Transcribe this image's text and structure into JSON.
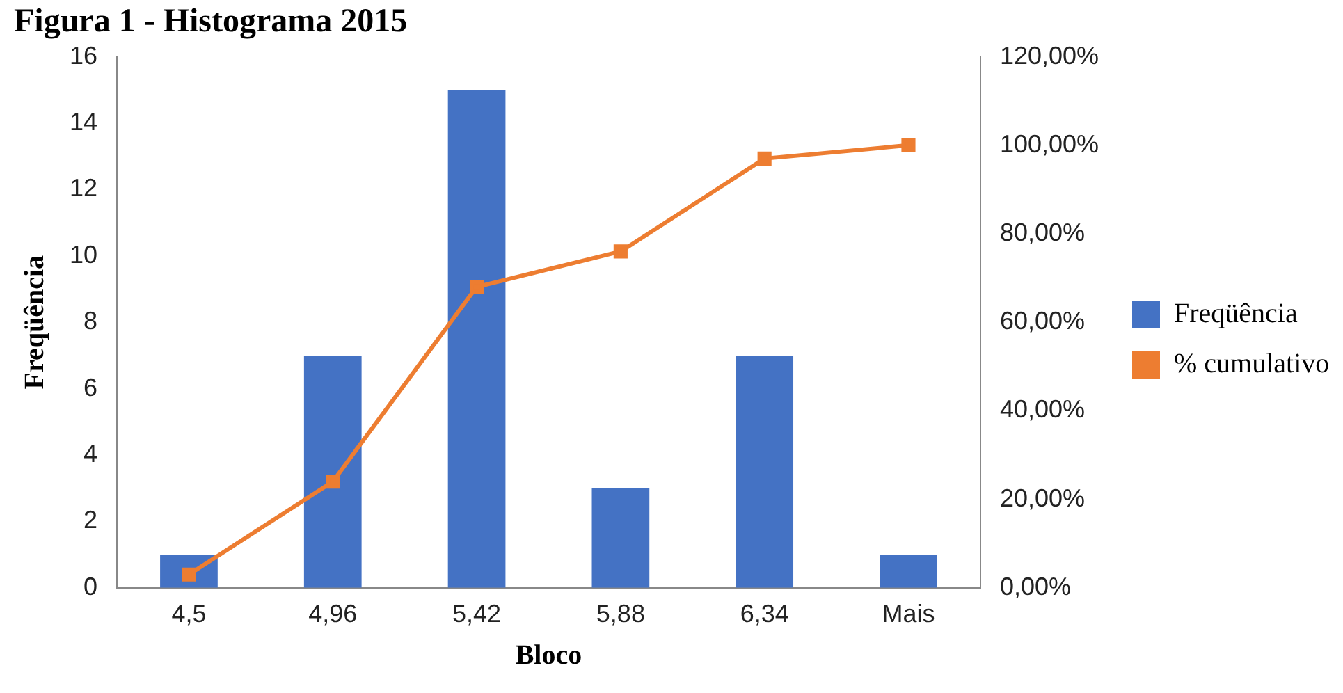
{
  "chart_data": {
    "type": "bar",
    "title": "Figura 1 - Histograma 2015",
    "xlabel": "Bloco",
    "ylabel": "Freqüência",
    "categories": [
      "4,5",
      "4,96",
      "5,42",
      "5,88",
      "6,34",
      "Mais"
    ],
    "series": [
      {
        "name": "Freqüência",
        "color": "#4472c4",
        "values": [
          1,
          7,
          15,
          3,
          7,
          1
        ]
      },
      {
        "name": "% cumulativo",
        "type": "line",
        "axis": "y2",
        "color": "#ed7d31",
        "marker": "square",
        "values": [
          3,
          24,
          68,
          76,
          97,
          100
        ]
      }
    ],
    "ylim": [
      0,
      16
    ],
    "yticks": [
      0,
      2,
      4,
      6,
      8,
      10,
      12,
      14,
      16
    ],
    "y2lim": [
      0,
      120
    ],
    "y2ticks": [
      {
        "value": 0,
        "label": "0,00%"
      },
      {
        "value": 20,
        "label": "20,00%"
      },
      {
        "value": 40,
        "label": "40,00%"
      },
      {
        "value": 60,
        "label": "60,00%"
      },
      {
        "value": 80,
        "label": "80,00%"
      },
      {
        "value": 100,
        "label": "100,00%"
      },
      {
        "value": 120,
        "label": "120,00%"
      }
    ],
    "grid": false,
    "legend": "right"
  }
}
